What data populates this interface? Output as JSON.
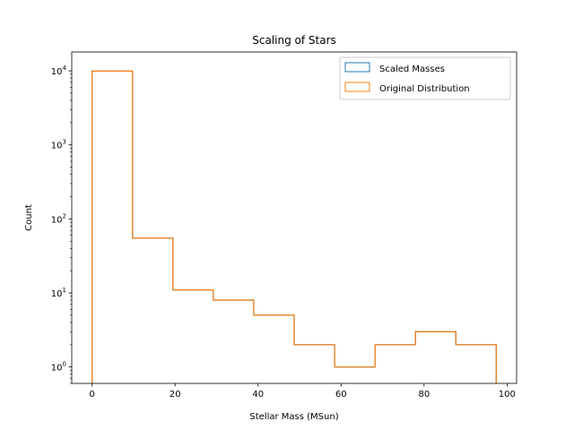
{
  "chart_data": {
    "type": "bar",
    "histtype": "step",
    "title": "Scaling of Stars",
    "xlabel": "Stellar Mass (MSun)",
    "ylabel": "Count",
    "yscale": "log",
    "xlim": [
      -4.9,
      102.3
    ],
    "ylim": [
      0.6,
      18000
    ],
    "xticks": [
      0,
      20,
      40,
      60,
      80,
      100
    ],
    "yticks": [
      {
        "value": 1,
        "base": "10",
        "exp": "0"
      },
      {
        "value": 10,
        "base": "10",
        "exp": "1"
      },
      {
        "value": 100,
        "base": "10",
        "exp": "2"
      },
      {
        "value": 1000,
        "base": "10",
        "exp": "3"
      },
      {
        "value": 10000,
        "base": "10",
        "exp": "4"
      }
    ],
    "bin_edges": [
      0.0,
      9.74,
      19.48,
      29.22,
      38.96,
      48.7,
      58.44,
      68.18,
      77.92,
      87.66,
      97.4
    ],
    "series": [
      {
        "name": "Scaled Masses",
        "color": "#1f77b4",
        "counts": [
          9919,
          55,
          11,
          8,
          5,
          2,
          1,
          2,
          3,
          2
        ]
      },
      {
        "name": "Original Distribution",
        "color": "#ff7f0e",
        "counts": [
          9919,
          55,
          11,
          8,
          5,
          2,
          1,
          2,
          3,
          2
        ]
      }
    ],
    "grid": false,
    "legend_position": "top-right"
  }
}
